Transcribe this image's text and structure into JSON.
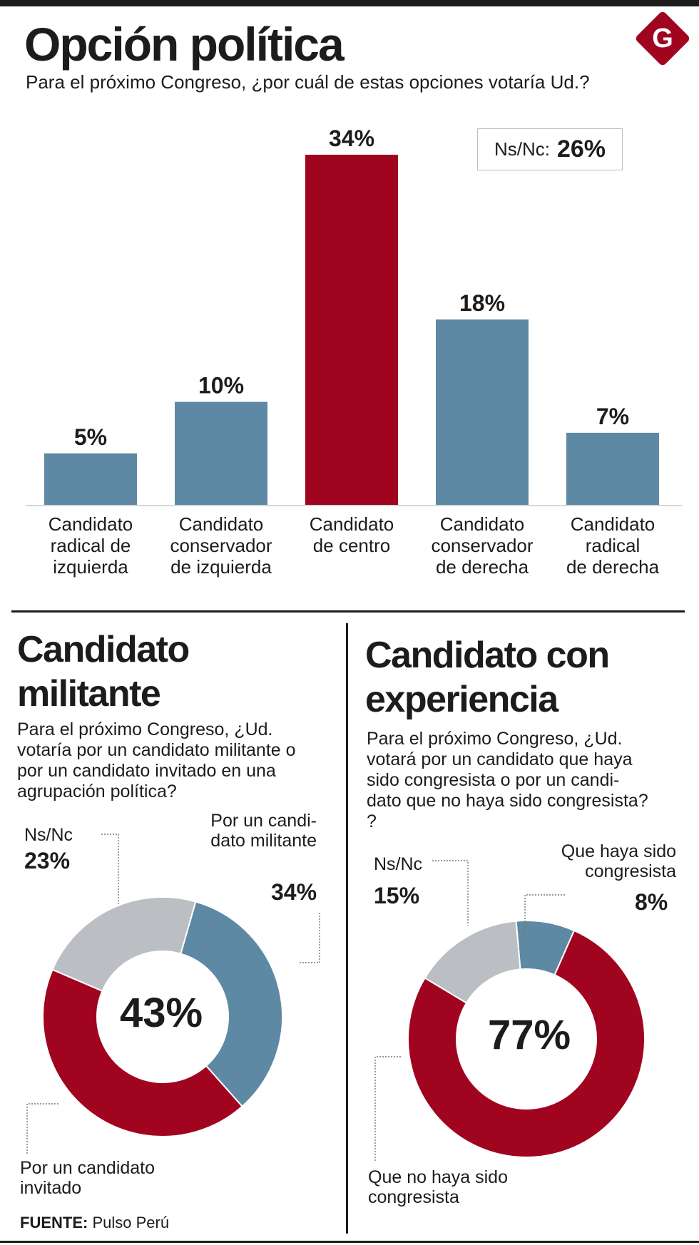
{
  "header": {
    "title": "Opción política",
    "subtitle": "Para el próximo Congreso, ¿por cuál de estas opciones votaría Ud.?",
    "logo_letter": "G"
  },
  "nsnc_box": {
    "label": "Ns/Nc:",
    "value": "26%"
  },
  "colors": {
    "red": "#a0041f",
    "blue": "#5e89a4",
    "gray": "#bbbec2",
    "text": "#1c1c1c"
  },
  "chart_data": [
    {
      "type": "bar",
      "title": "Opción política",
      "categories": [
        "Candidato\nradical de\nizquierda",
        "Candidato\nconservador\nde izquierda",
        "Candidato\nde centro",
        "Candidato\nconservador\nde derecha",
        "Candidato\nradical\nde derecha"
      ],
      "values": [
        5,
        10,
        34,
        18,
        7
      ],
      "value_labels": [
        "5%",
        "10%",
        "34%",
        "18%",
        "7%"
      ],
      "highlight_index": 2,
      "ylim": [
        0,
        34
      ],
      "grid": false
    },
    {
      "type": "pie",
      "title": "Candidato\nmilitante",
      "question": "Para el próximo Congreso, ¿Ud.\nvotaría por un candidato militante o\npor un candidato invitado en una\nagrupación política?",
      "center_label": "43%",
      "slices": [
        {
          "label": "Por un candi-\ndato militante",
          "value": 34,
          "value_label": "34%",
          "color_key": "blue"
        },
        {
          "label": "Por un candidato\ninvitado",
          "value": 43,
          "value_label": "43%",
          "color_key": "red"
        },
        {
          "label": "Ns/Nc",
          "value": 23,
          "value_label": "23%",
          "color_key": "gray"
        }
      ]
    },
    {
      "type": "pie",
      "title": "Candidato con\nexperiencia",
      "question": "Para el próximo Congreso, ¿Ud.\nvotará por un candidato que haya\nsido congresista o por un candi-\ndato que no haya sido congresista?\n?",
      "center_label": "77%",
      "slices": [
        {
          "label": "Que haya sido\ncongresista",
          "value": 8,
          "value_label": "8%",
          "color_key": "blue"
        },
        {
          "label": "Que no haya sido\ncongresista",
          "value": 77,
          "value_label": "77%",
          "color_key": "red"
        },
        {
          "label": "Ns/Nc",
          "value": 15,
          "value_label": "15%",
          "color_key": "gray"
        }
      ]
    }
  ],
  "source": {
    "label": "FUENTE:",
    "text": " Pulso Perú"
  }
}
